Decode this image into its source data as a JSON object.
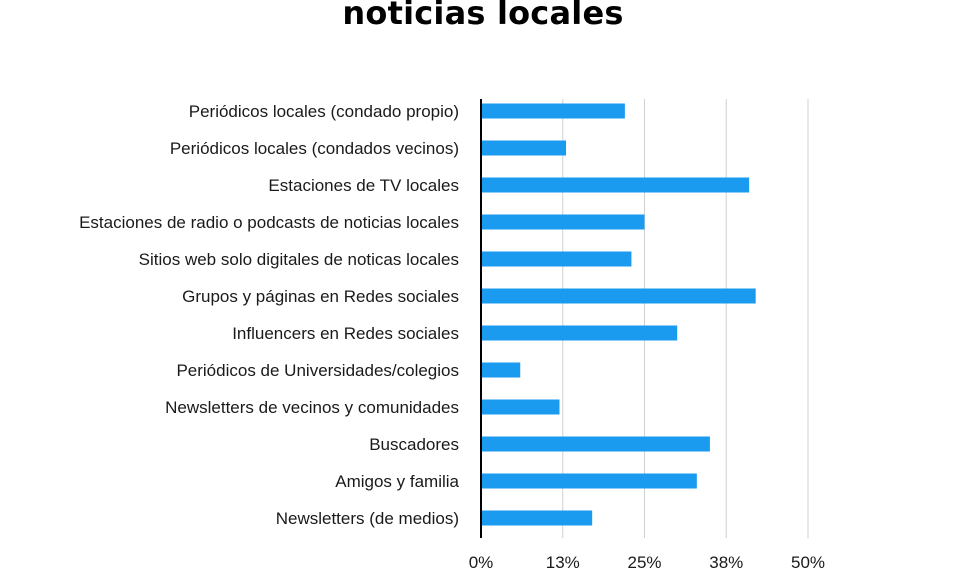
{
  "chart_data": {
    "type": "bar",
    "orientation": "horizontal",
    "title": "noticias locales",
    "categories": [
      "Periódicos locales (condado propio)",
      "Periódicos locales (condados vecinos)",
      "Estaciones de TV locales",
      "Estaciones de radio o podcasts de noticias locales",
      "Sitios web solo digitales de noticas locales",
      "Grupos y páginas en Redes sociales",
      "Influencers en Redes sociales",
      "Periódicos de Universidades/colegios",
      "Newsletters de vecinos y comunidades",
      "Buscadores",
      "Amigos y familia",
      "Newsletters (de medios)"
    ],
    "values": [
      22,
      13,
      41,
      25,
      23,
      42,
      30,
      6,
      12,
      35,
      33,
      17
    ],
    "xlim": [
      0,
      50
    ],
    "xticks": [
      0,
      12.5,
      25,
      37.5,
      50
    ],
    "xtick_labels": [
      "0%",
      "13%",
      "25%",
      "38%",
      "50%"
    ],
    "xlabel": "",
    "ylabel": "",
    "grid": true,
    "legend": false,
    "bar_color": "#1a9bf0",
    "grid_color": "#d0d0d0",
    "axis_color": "#000000"
  }
}
